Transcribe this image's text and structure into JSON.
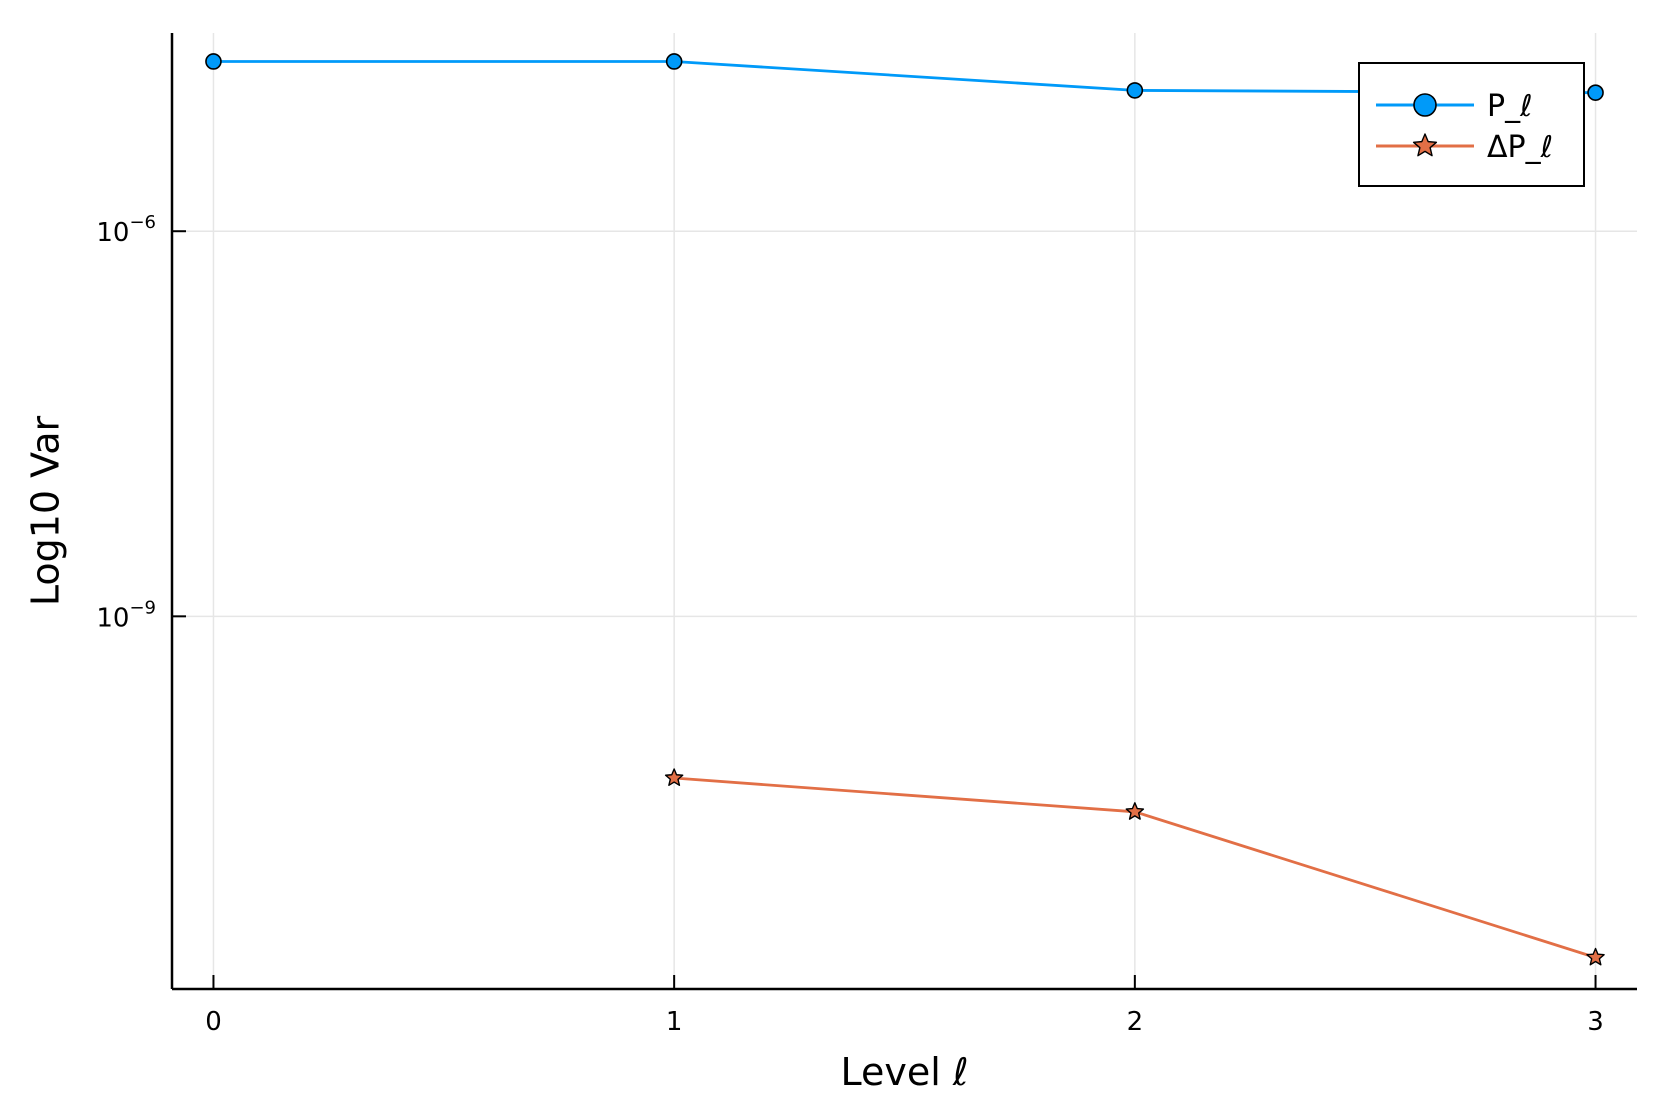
{
  "chart_data": {
    "type": "line",
    "title": "",
    "xlabel": "Level ℓ",
    "ylabel": "Log10 Var",
    "y_scale": "log",
    "x_ticks": [
      "0",
      "1",
      "2",
      "3"
    ],
    "y_ticks": [
      {
        "value": 1e-06,
        "base": "10",
        "exp": "−6"
      },
      {
        "value": 1e-09,
        "base": "10",
        "exp": "−9"
      }
    ],
    "xlim": [
      -0.09,
      3.09
    ],
    "ylim": [
      1.25e-12,
      3.5e-05
    ],
    "grid": true,
    "legend_position": "top-right",
    "series": [
      {
        "name": "P_ℓ",
        "color": "#009af9",
        "marker": "circle",
        "x": [
          0,
          1,
          2,
          3
        ],
        "y": [
          2.1e-05,
          2.1e-05,
          1.25e-05,
          1.2e-05
        ]
      },
      {
        "name": "ΔP_ℓ",
        "color": "#e26f46",
        "marker": "star",
        "x": [
          1,
          2,
          3
        ],
        "y": [
          5.5e-11,
          3e-11,
          2.2e-12
        ]
      }
    ]
  }
}
